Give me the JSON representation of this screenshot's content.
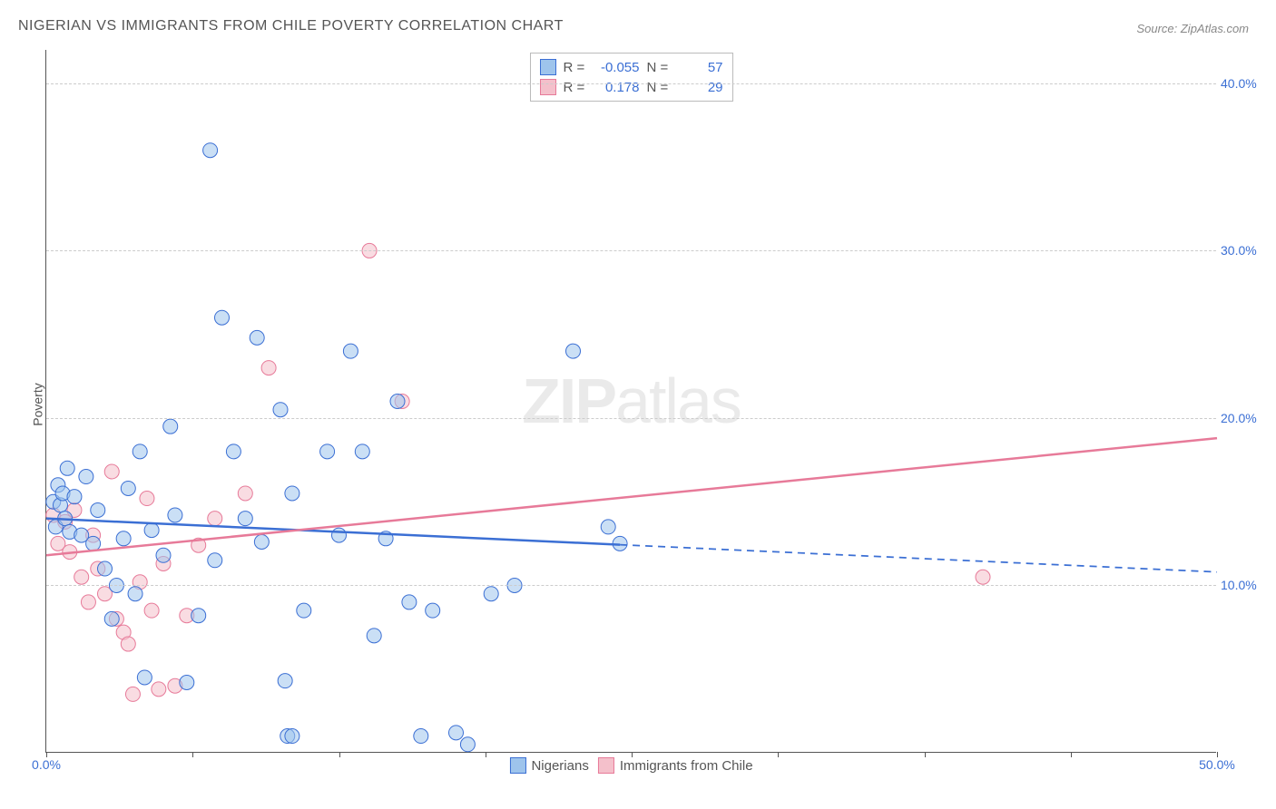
{
  "title": "NIGERIAN VS IMMIGRANTS FROM CHILE POVERTY CORRELATION CHART",
  "source": "Source: ZipAtlas.com",
  "ylabel": "Poverty",
  "watermark": {
    "bold": "ZIP",
    "rest": "atlas"
  },
  "chart": {
    "type": "scatter",
    "xlim": [
      0,
      50
    ],
    "ylim": [
      0,
      42
    ],
    "xtick_positions": [
      0,
      6.25,
      12.5,
      18.75,
      25,
      31.25,
      37.5,
      43.75,
      50
    ],
    "xtick_labels": {
      "0": "0.0%",
      "50": "50.0%"
    },
    "ytick_positions": [
      10,
      20,
      30,
      40
    ],
    "ytick_labels": [
      "10.0%",
      "20.0%",
      "30.0%",
      "40.0%"
    ],
    "grid_color": "#cccccc",
    "background_color": "#ffffff",
    "marker_radius": 8,
    "marker_opacity": 0.55,
    "series": {
      "nigerians": {
        "label": "Nigerians",
        "fill": "#9ec4ec",
        "stroke": "#3b6fd4",
        "r": "-0.055",
        "n": "57",
        "trend": {
          "y_at_x0": 14.0,
          "y_at_xmax": 10.8,
          "solid_until_x": 24.5
        },
        "points": [
          [
            0.3,
            15.0
          ],
          [
            0.4,
            13.5
          ],
          [
            0.5,
            16.0
          ],
          [
            0.6,
            14.8
          ],
          [
            0.7,
            15.5
          ],
          [
            0.8,
            14.0
          ],
          [
            0.9,
            17.0
          ],
          [
            1.0,
            13.2
          ],
          [
            1.2,
            15.3
          ],
          [
            1.5,
            13.0
          ],
          [
            1.7,
            16.5
          ],
          [
            2.0,
            12.5
          ],
          [
            2.2,
            14.5
          ],
          [
            2.5,
            11.0
          ],
          [
            2.8,
            8.0
          ],
          [
            3.0,
            10.0
          ],
          [
            3.3,
            12.8
          ],
          [
            3.5,
            15.8
          ],
          [
            3.8,
            9.5
          ],
          [
            4.0,
            18.0
          ],
          [
            4.2,
            4.5
          ],
          [
            4.5,
            13.3
          ],
          [
            5.0,
            11.8
          ],
          [
            5.3,
            19.5
          ],
          [
            5.5,
            14.2
          ],
          [
            6.0,
            4.2
          ],
          [
            6.5,
            8.2
          ],
          [
            7.0,
            36.0
          ],
          [
            7.2,
            11.5
          ],
          [
            7.5,
            26.0
          ],
          [
            8.0,
            18.0
          ],
          [
            8.5,
            14.0
          ],
          [
            9.0,
            24.8
          ],
          [
            9.2,
            12.6
          ],
          [
            10.0,
            20.5
          ],
          [
            10.2,
            4.3
          ],
          [
            10.3,
            1.0
          ],
          [
            10.5,
            1.0
          ],
          [
            10.5,
            15.5
          ],
          [
            11.0,
            8.5
          ],
          [
            12.0,
            18.0
          ],
          [
            12.5,
            13.0
          ],
          [
            13.0,
            24.0
          ],
          [
            13.5,
            18.0
          ],
          [
            14.0,
            7.0
          ],
          [
            14.5,
            12.8
          ],
          [
            15.0,
            21.0
          ],
          [
            15.5,
            9.0
          ],
          [
            16.0,
            1.0
          ],
          [
            16.5,
            8.5
          ],
          [
            17.5,
            1.2
          ],
          [
            18.0,
            0.5
          ],
          [
            19.0,
            9.5
          ],
          [
            20.0,
            10.0
          ],
          [
            22.5,
            24.0
          ],
          [
            24.0,
            13.5
          ],
          [
            24.5,
            12.5
          ]
        ]
      },
      "chile": {
        "label": "Immigrants from Chile",
        "fill": "#f4c0cb",
        "stroke": "#e77a99",
        "r": "0.178",
        "n": "29",
        "trend": {
          "y_at_x0": 11.8,
          "y_at_xmax": 18.8,
          "solid_until_x": 50
        },
        "points": [
          [
            0.3,
            14.2
          ],
          [
            0.5,
            12.5
          ],
          [
            0.8,
            13.8
          ],
          [
            1.0,
            12.0
          ],
          [
            1.2,
            14.5
          ],
          [
            1.5,
            10.5
          ],
          [
            1.8,
            9.0
          ],
          [
            2.0,
            13.0
          ],
          [
            2.2,
            11.0
          ],
          [
            2.5,
            9.5
          ],
          [
            2.8,
            16.8
          ],
          [
            3.0,
            8.0
          ],
          [
            3.3,
            7.2
          ],
          [
            3.5,
            6.5
          ],
          [
            3.7,
            3.5
          ],
          [
            4.0,
            10.2
          ],
          [
            4.3,
            15.2
          ],
          [
            4.5,
            8.5
          ],
          [
            4.8,
            3.8
          ],
          [
            5.0,
            11.3
          ],
          [
            5.5,
            4.0
          ],
          [
            6.0,
            8.2
          ],
          [
            6.5,
            12.4
          ],
          [
            7.2,
            14.0
          ],
          [
            8.5,
            15.5
          ],
          [
            9.5,
            23.0
          ],
          [
            13.8,
            30.0
          ],
          [
            15.2,
            21.0
          ],
          [
            40.0,
            10.5
          ]
        ]
      }
    },
    "legend_top_labels": {
      "r": "R =",
      "n": "N ="
    },
    "trend_line_width": 2.5
  }
}
